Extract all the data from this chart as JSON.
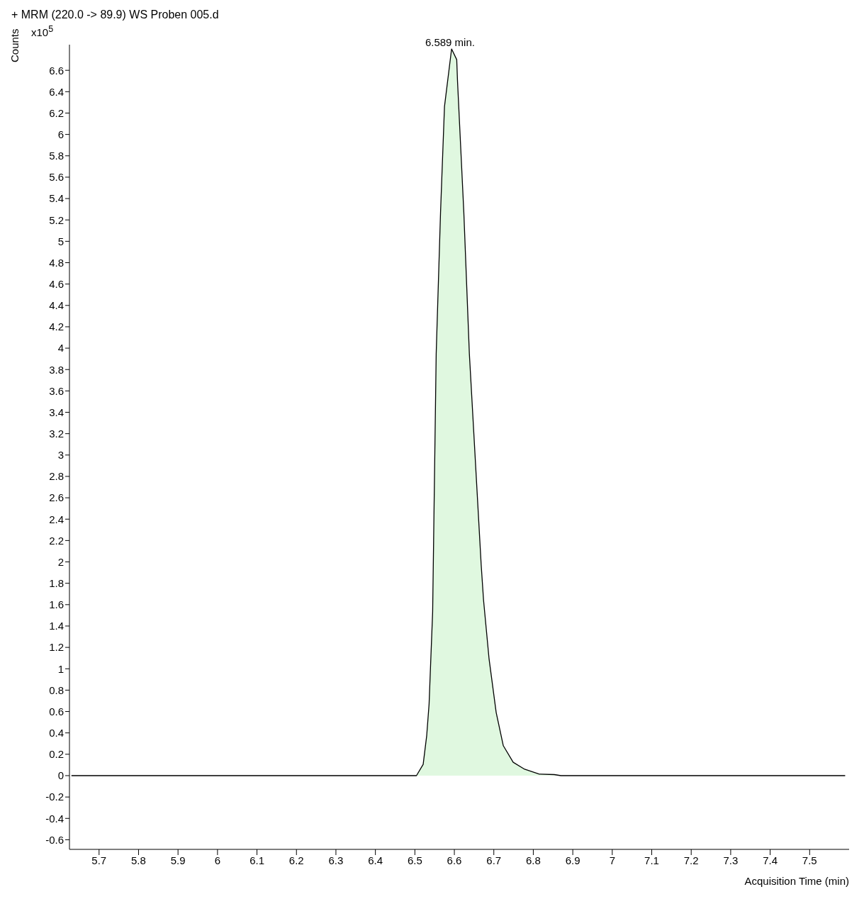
{
  "chart_data": {
    "type": "area",
    "title": "+ MRM (220.0 -> 89.9) WS Proben 005.d",
    "xlabel": "Acquisition Time (min)",
    "ylabel": "Counts",
    "annotations": [
      "x10$^{5}$",
      {
        "text": "6.589 min.",
        "x": 6.589,
        "y": 6.8
      }
    ],
    "x": [
      5.63,
      6.504,
      6.521,
      6.53,
      6.536,
      6.539,
      6.545,
      6.554,
      6.565,
      6.575,
      6.593,
      6.606,
      6.608,
      6.624,
      6.638,
      6.658,
      6.668,
      6.674,
      6.688,
      6.706,
      6.724,
      6.749,
      6.778,
      6.814,
      6.853,
      6.87,
      7.59
    ],
    "series": [
      {
        "color": "#e0f8e0",
        "values": [
          0,
          0,
          0.105,
          0.376,
          0.67,
          0.96,
          1.53,
          3.95,
          5.27,
          6.26,
          6.8,
          6.7,
          6.5,
          5.27,
          3.95,
          2.63,
          1.97,
          1.64,
          1.09,
          0.59,
          0.28,
          0.125,
          0.06,
          0.015,
          0.01,
          0,
          0
        ]
      }
    ],
    "xlim": [
      5.625,
      7.6
    ],
    "ylim": [
      -0.69,
      6.84
    ],
    "xticks": [
      5.7,
      5.8,
      5.9,
      6,
      6.1,
      6.2,
      6.3,
      6.4,
      6.5,
      6.6,
      6.7,
      6.8,
      6.9,
      7,
      7.1,
      7.2,
      7.3,
      7.4,
      7.5
    ],
    "yticks": [
      -0.6,
      -0.4,
      -0.2,
      0,
      0.2,
      0.4,
      0.6,
      0.8,
      1,
      1.2,
      1.4,
      1.6,
      1.8,
      2,
      2.2,
      2.4,
      2.6,
      2.8,
      3,
      3.2,
      3.4,
      3.6,
      3.8,
      4,
      4.2,
      4.4,
      4.6,
      4.8,
      5,
      5.2,
      5.4,
      5.6,
      5.8,
      6,
      6.2,
      6.4,
      6.6
    ],
    "grid": false,
    "legend": false
  }
}
